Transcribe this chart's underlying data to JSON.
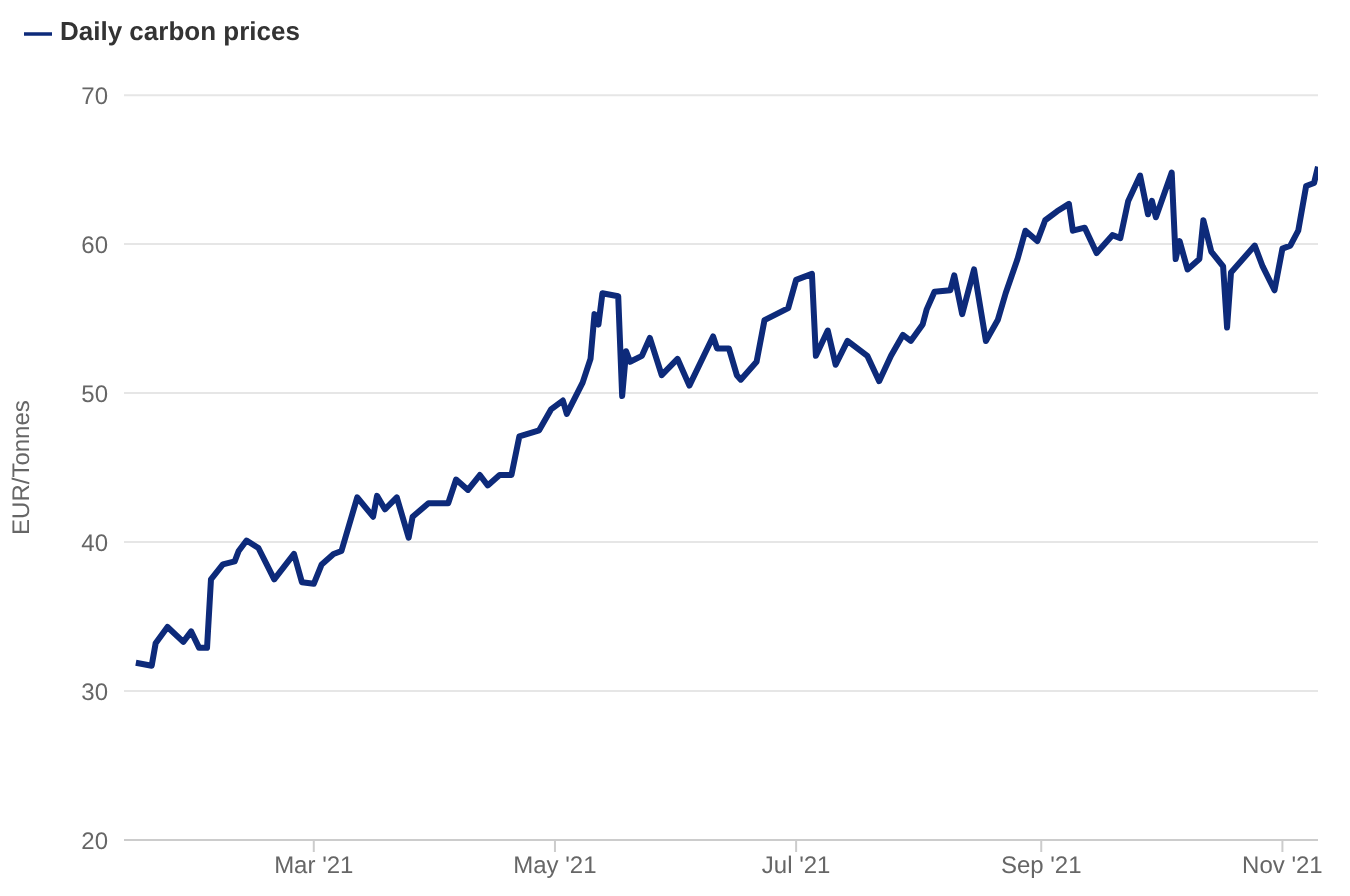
{
  "chart_data": {
    "type": "line",
    "ylabel": "EUR/Tonnes",
    "legend": "top left",
    "grid": "y",
    "marker": "none",
    "line_style": "solid",
    "xlim": [
      "2021-01-12",
      "2021-11-10"
    ],
    "xticks": [
      {
        "value": "2021-03-01",
        "label": "Mar '21"
      },
      {
        "value": "2021-05-01",
        "label": "May '21"
      },
      {
        "value": "2021-07-01",
        "label": "Jul '21"
      },
      {
        "value": "2021-09-01",
        "label": "Sep '21"
      },
      {
        "value": "2021-11-01",
        "label": "Nov '21"
      }
    ],
    "ylim": [
      20,
      70
    ],
    "yticks": [
      20,
      30,
      40,
      50,
      60,
      70
    ],
    "x": [
      "2021-01-15",
      "2021-01-19",
      "2021-01-20",
      "2021-01-23",
      "2021-01-27",
      "2021-01-29",
      "2021-01-31",
      "2021-02-02",
      "2021-02-03",
      "2021-02-06",
      "2021-02-09",
      "2021-02-10",
      "2021-02-12",
      "2021-02-15",
      "2021-02-19",
      "2021-02-24",
      "2021-02-26",
      "2021-03-01",
      "2021-03-03",
      "2021-03-06",
      "2021-03-08",
      "2021-03-12",
      "2021-03-16",
      "2021-03-17",
      "2021-03-19",
      "2021-03-22",
      "2021-03-25",
      "2021-03-26",
      "2021-03-30",
      "2021-04-04",
      "2021-04-06",
      "2021-04-09",
      "2021-04-12",
      "2021-04-14",
      "2021-04-17",
      "2021-04-20",
      "2021-04-22",
      "2021-04-27",
      "2021-04-30",
      "2021-05-03",
      "2021-05-04",
      "2021-05-08",
      "2021-05-10",
      "2021-05-11",
      "2021-05-12",
      "2021-05-13",
      "2021-05-17",
      "2021-05-18",
      "2021-05-19",
      "2021-05-20",
      "2021-05-23",
      "2021-05-25",
      "2021-05-28",
      "2021-06-01",
      "2021-06-04",
      "2021-06-10",
      "2021-06-11",
      "2021-06-14",
      "2021-06-16",
      "2021-06-17",
      "2021-06-21",
      "2021-06-23",
      "2021-06-29",
      "2021-07-01",
      "2021-07-05",
      "2021-07-06",
      "2021-07-09",
      "2021-07-11",
      "2021-07-14",
      "2021-07-19",
      "2021-07-22",
      "2021-07-25",
      "2021-07-28",
      "2021-07-30",
      "2021-08-02",
      "2021-08-03",
      "2021-08-05",
      "2021-08-09",
      "2021-08-10",
      "2021-08-12",
      "2021-08-15",
      "2021-08-18",
      "2021-08-21",
      "2021-08-23",
      "2021-08-26",
      "2021-08-28",
      "2021-08-31",
      "2021-09-02",
      "2021-09-05",
      "2021-09-08",
      "2021-09-09",
      "2021-09-12",
      "2021-09-15",
      "2021-09-19",
      "2021-09-21",
      "2021-09-23",
      "2021-09-26",
      "2021-09-28",
      "2021-09-29",
      "2021-09-30",
      "2021-10-04",
      "2021-10-05",
      "2021-10-06",
      "2021-10-08",
      "2021-10-11",
      "2021-10-12",
      "2021-10-14",
      "2021-10-17",
      "2021-10-18",
      "2021-10-19",
      "2021-10-25",
      "2021-10-27",
      "2021-10-30",
      "2021-11-01",
      "2021-11-03",
      "2021-11-05",
      "2021-11-07",
      "2021-11-09",
      "2021-11-10"
    ],
    "series": [
      {
        "name": "Daily carbon prices",
        "color": "#0d2a7a",
        "values": [
          31.9,
          31.7,
          33.2,
          34.3,
          33.3,
          34.0,
          32.9,
          32.9,
          37.5,
          38.5,
          38.7,
          39.4,
          40.1,
          39.6,
          37.5,
          39.2,
          37.3,
          37.2,
          38.5,
          39.2,
          39.4,
          43.0,
          41.7,
          43.1,
          42.2,
          43.0,
          40.3,
          41.7,
          42.6,
          42.6,
          44.2,
          43.5,
          44.5,
          43.8,
          44.5,
          44.5,
          47.1,
          47.5,
          48.9,
          49.5,
          48.6,
          50.7,
          52.3,
          55.3,
          54.6,
          56.7,
          56.5,
          49.8,
          52.8,
          52.1,
          52.5,
          53.7,
          51.2,
          52.3,
          50.5,
          53.8,
          53.0,
          53.0,
          51.2,
          50.9,
          52.1,
          54.9,
          55.7,
          57.6,
          58.0,
          52.5,
          54.2,
          51.9,
          53.5,
          52.5,
          50.8,
          52.5,
          53.9,
          53.5,
          54.6,
          55.6,
          56.8,
          56.9,
          57.9,
          55.3,
          58.3,
          53.5,
          54.9,
          56.7,
          59.0,
          60.9,
          60.2,
          61.6,
          62.2,
          62.7,
          60.9,
          61.1,
          59.4,
          60.6,
          60.4,
          62.9,
          64.6,
          62.0,
          62.9,
          61.8,
          64.8,
          59.0,
          60.2,
          58.3,
          59.0,
          61.6,
          59.5,
          58.5,
          54.4,
          58.1,
          59.9,
          58.5,
          56.9,
          59.7,
          59.9,
          60.9,
          63.9,
          64.1,
          65.2
        ]
      }
    ]
  }
}
